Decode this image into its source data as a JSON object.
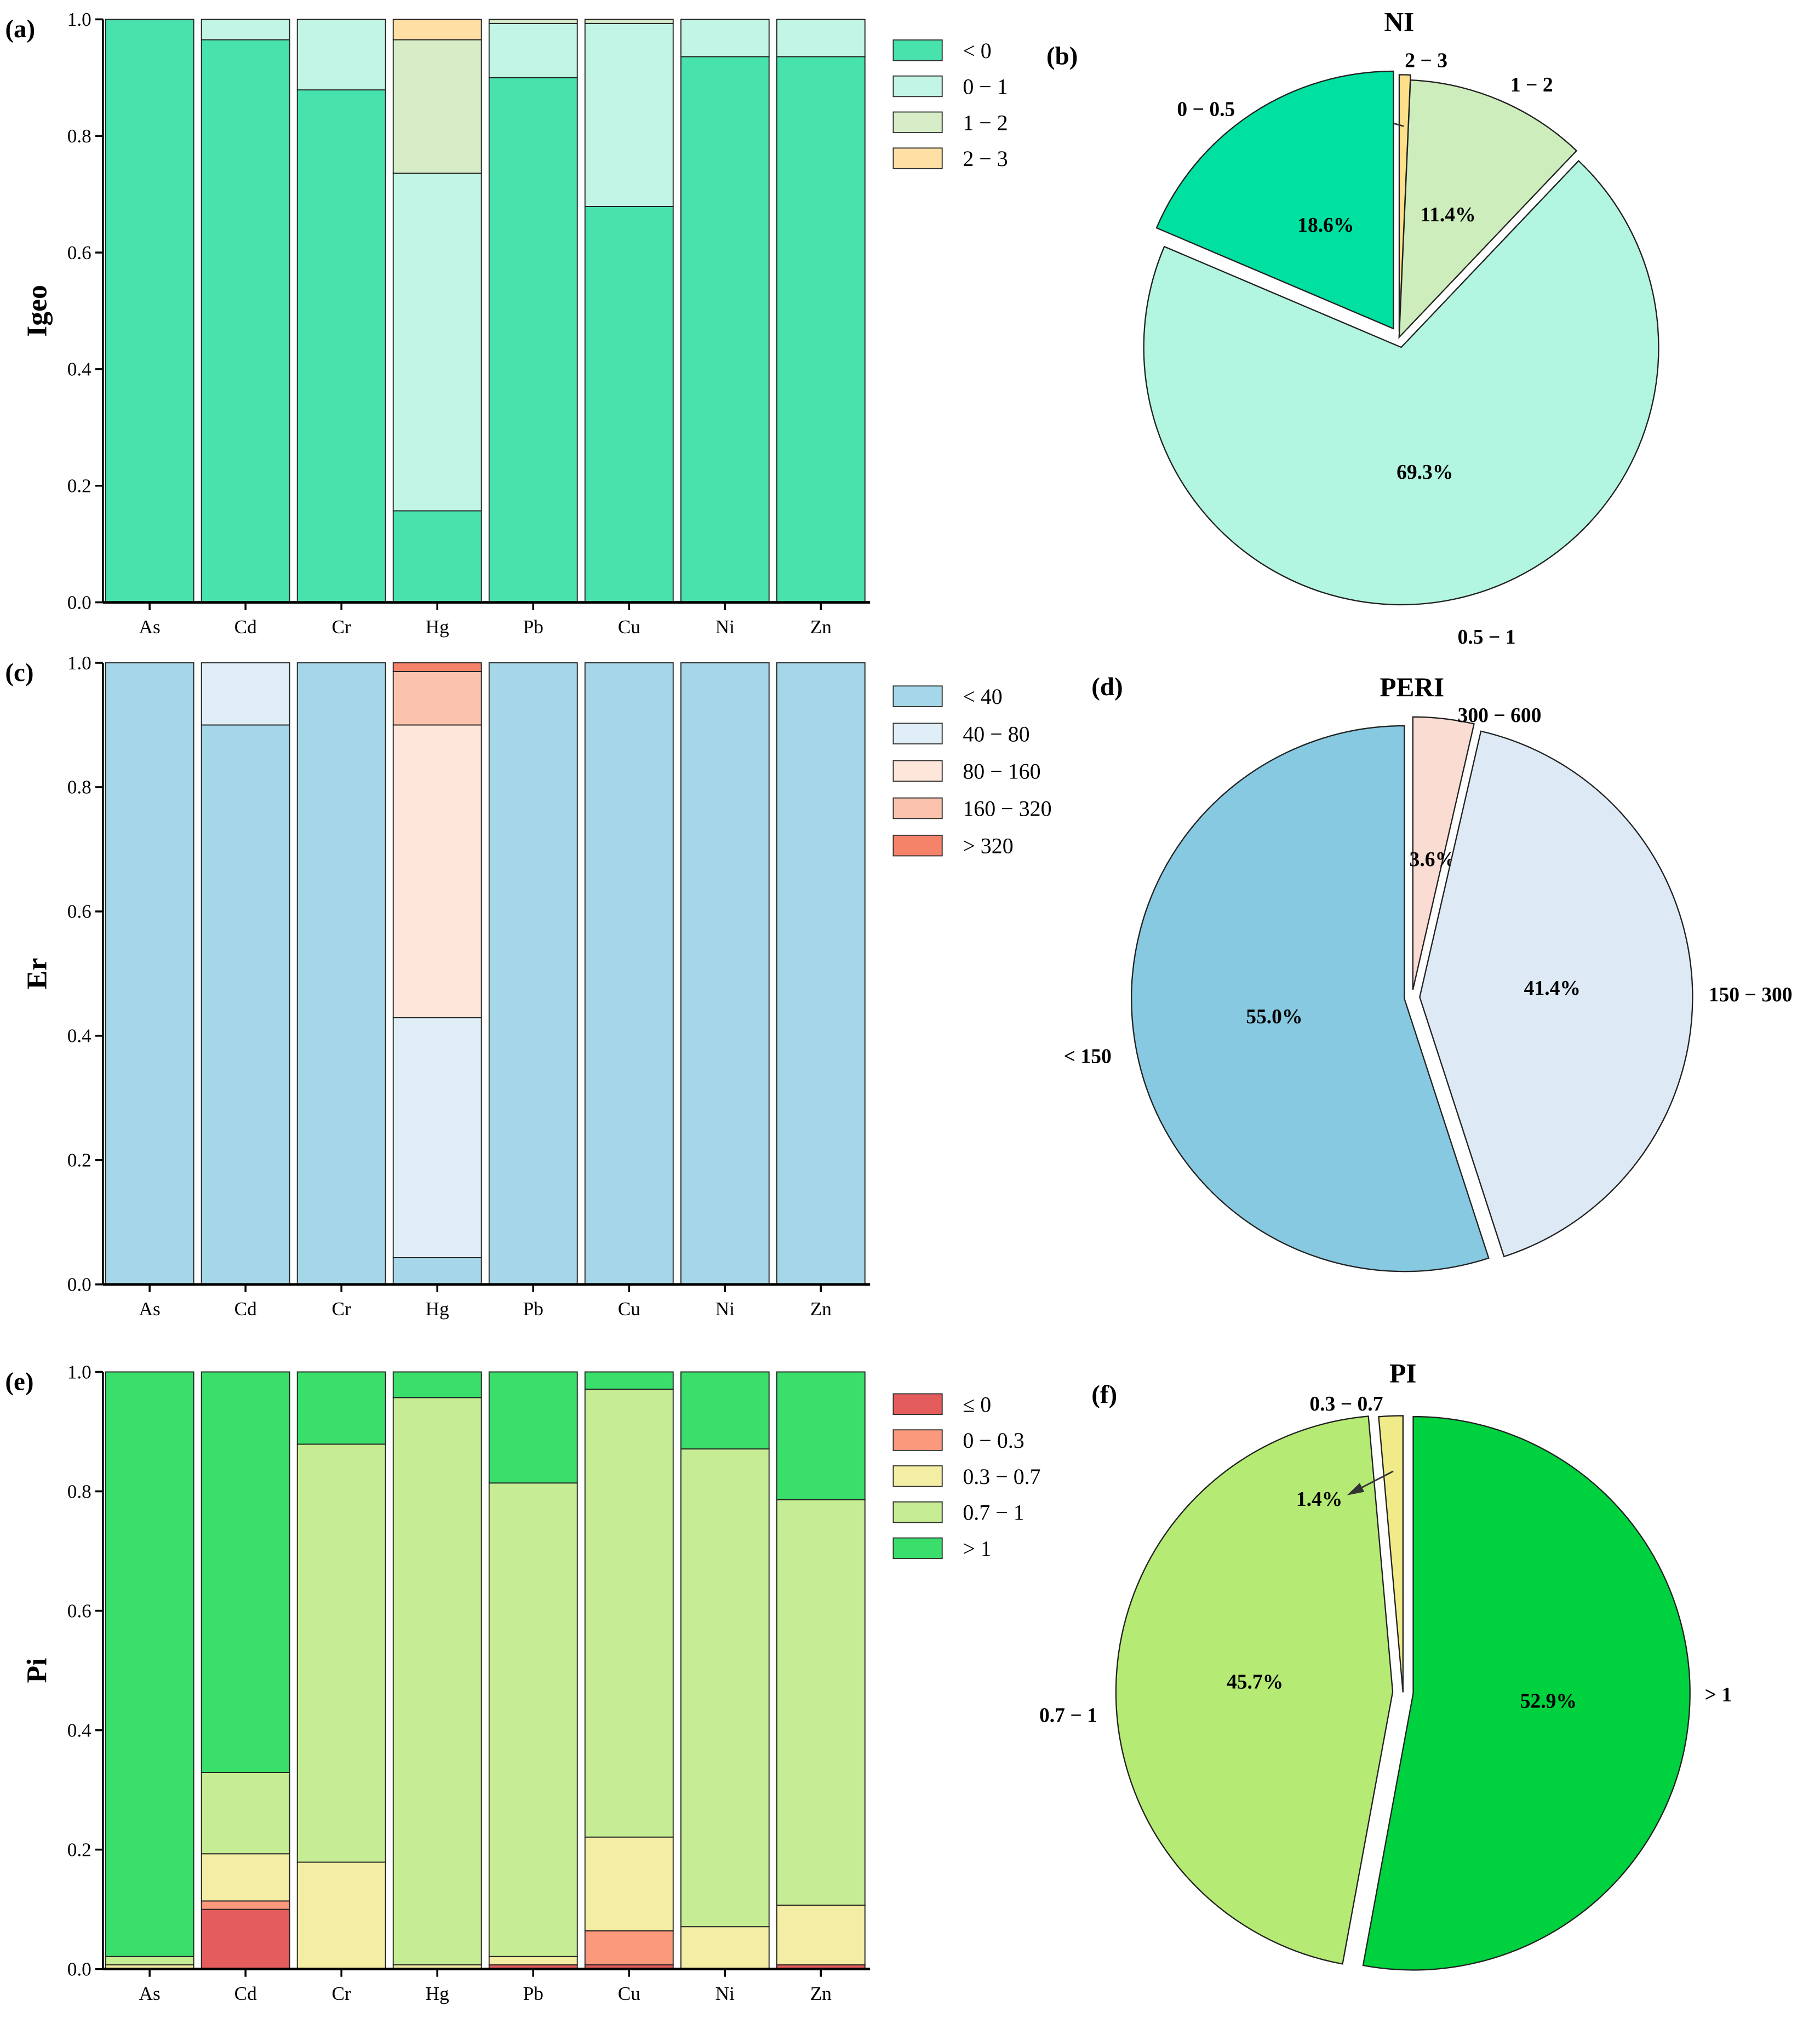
{
  "chart_data": [
    {
      "type": "bar",
      "stacked": true,
      "panel": "(a)",
      "ylabel": "Igeo",
      "ylim": [
        0,
        1
      ],
      "yticks": [
        "0.0",
        "0.2",
        "0.4",
        "0.6",
        "0.8",
        "1.0"
      ],
      "categories": [
        "As",
        "Cd",
        "Cr",
        "Hg",
        "Pb",
        "Cu",
        "Ni",
        "Zn"
      ],
      "legend_position": "right",
      "series": [
        {
          "name": "< 0",
          "color": "#48e3ad",
          "values": [
            1.0,
            0.965,
            0.879,
            0.157,
            0.9,
            0.679,
            0.936,
            0.936
          ]
        },
        {
          "name": "0 − 1",
          "color": "#c2f5e5",
          "values": [
            0,
            0.035,
            0.121,
            0.579,
            0.093,
            0.314,
            0.064,
            0.064
          ]
        },
        {
          "name": "1 − 2",
          "color": "#d6edc7",
          "values": [
            0,
            0,
            0,
            0.229,
            0.007,
            0.007,
            0,
            0
          ]
        },
        {
          "name": "2 − 3",
          "color": "#ffdfa3",
          "values": [
            0,
            0,
            0,
            0.035,
            0,
            0,
            0,
            0
          ]
        }
      ]
    },
    {
      "type": "pie",
      "panel": "(b)",
      "title": "NI",
      "slices": [
        {
          "label": "2 − 3",
          "value": 0.7,
          "pct": "0.7%",
          "color": "#ffe08a"
        },
        {
          "label": "1 − 2",
          "value": 11.4,
          "pct": "11.4%",
          "color": "#cdedbd"
        },
        {
          "label": "0.5 − 1",
          "value": 69.3,
          "pct": "69.3%",
          "color": "#b2f5e0"
        },
        {
          "label": "0 − 0.5",
          "value": 18.6,
          "pct": "18.6%",
          "color": "#00e0a0"
        }
      ]
    },
    {
      "type": "bar",
      "stacked": true,
      "panel": "(c)",
      "ylabel": "Er",
      "ylim": [
        0,
        1
      ],
      "yticks": [
        "0.0",
        "0.2",
        "0.4",
        "0.6",
        "0.8",
        "1.0"
      ],
      "categories": [
        "As",
        "Cd",
        "Cr",
        "Hg",
        "Pb",
        "Cu",
        "Ni",
        "Zn"
      ],
      "legend_position": "right",
      "series": [
        {
          "name": "< 40",
          "color": "#a5d7e8",
          "values": [
            1.0,
            0.9,
            1.0,
            0.043,
            1.0,
            1.0,
            1.0,
            1.0
          ]
        },
        {
          "name": "40 − 80",
          "color": "#e0eef7",
          "values": [
            0,
            0.1,
            0,
            0.386,
            0,
            0,
            0,
            0
          ]
        },
        {
          "name": "80 − 160",
          "color": "#ffe6da",
          "values": [
            0,
            0,
            0,
            0.471,
            0,
            0,
            0,
            0
          ]
        },
        {
          "name": "160 − 320",
          "color": "#fbc3ad",
          "values": [
            0,
            0,
            0,
            0.086,
            0,
            0,
            0,
            0
          ]
        },
        {
          "name": "> 320",
          "color": "#f5836a",
          "values": [
            0,
            0,
            0,
            0.014,
            0,
            0,
            0,
            0
          ]
        }
      ]
    },
    {
      "type": "pie",
      "panel": "(d)",
      "title": "PERI",
      "slices": [
        {
          "label": "300 − 600",
          "value": 3.6,
          "pct": "3.6%",
          "color": "#fadcd2"
        },
        {
          "label": "150 − 300",
          "value": 41.4,
          "pct": "41.4%",
          "color": "#ddeaf6"
        },
        {
          "label": "< 150",
          "value": 55.0,
          "pct": "55.0%",
          "color": "#87c9e0"
        }
      ]
    },
    {
      "type": "bar",
      "stacked": true,
      "panel": "(e)",
      "ylabel": "Pi",
      "ylim": [
        0,
        1
      ],
      "yticks": [
        "0.0",
        "0.2",
        "0.4",
        "0.6",
        "0.8",
        "1.0"
      ],
      "categories": [
        "As",
        "Cd",
        "Cr",
        "Hg",
        "Pb",
        "Cu",
        "Ni",
        "Zn"
      ],
      "legend_position": "right",
      "series": [
        {
          "name": "≤ 0",
          "color": "#e55c5c",
          "values": [
            0,
            0.1,
            0,
            0,
            0.007,
            0.007,
            0,
            0.007
          ]
        },
        {
          "name": "0 − 0.3",
          "color": "#fb997c",
          "values": [
            0,
            0.014,
            0,
            0,
            0,
            0.057,
            0,
            0
          ]
        },
        {
          "name": "0.3 − 0.7",
          "color": "#f4eea5",
          "values": [
            0.007,
            0.079,
            0.179,
            0.007,
            0.014,
            0.157,
            0.071,
            0.1
          ]
        },
        {
          "name": "0.7 − 1",
          "color": "#c6ed93",
          "values": [
            0.014,
            0.136,
            0.7,
            0.95,
            0.793,
            0.75,
            0.8,
            0.679
          ]
        },
        {
          "name": "> 1",
          "color": "#39df6a",
          "values": [
            0.979,
            0.671,
            0.121,
            0.043,
            0.186,
            0.029,
            0.129,
            0.214
          ]
        }
      ]
    },
    {
      "type": "pie",
      "panel": "(f)",
      "title": "PI",
      "slices": [
        {
          "label": "> 1",
          "value": 52.9,
          "pct": "52.9%",
          "color": "#00d13e"
        },
        {
          "label": "0.7 − 1",
          "value": 45.7,
          "pct": "45.7%",
          "color": "#b5ea74"
        },
        {
          "label": "0.3 − 0.7",
          "value": 1.4,
          "pct": "1.4%",
          "color": "#f0ea88"
        }
      ]
    }
  ]
}
